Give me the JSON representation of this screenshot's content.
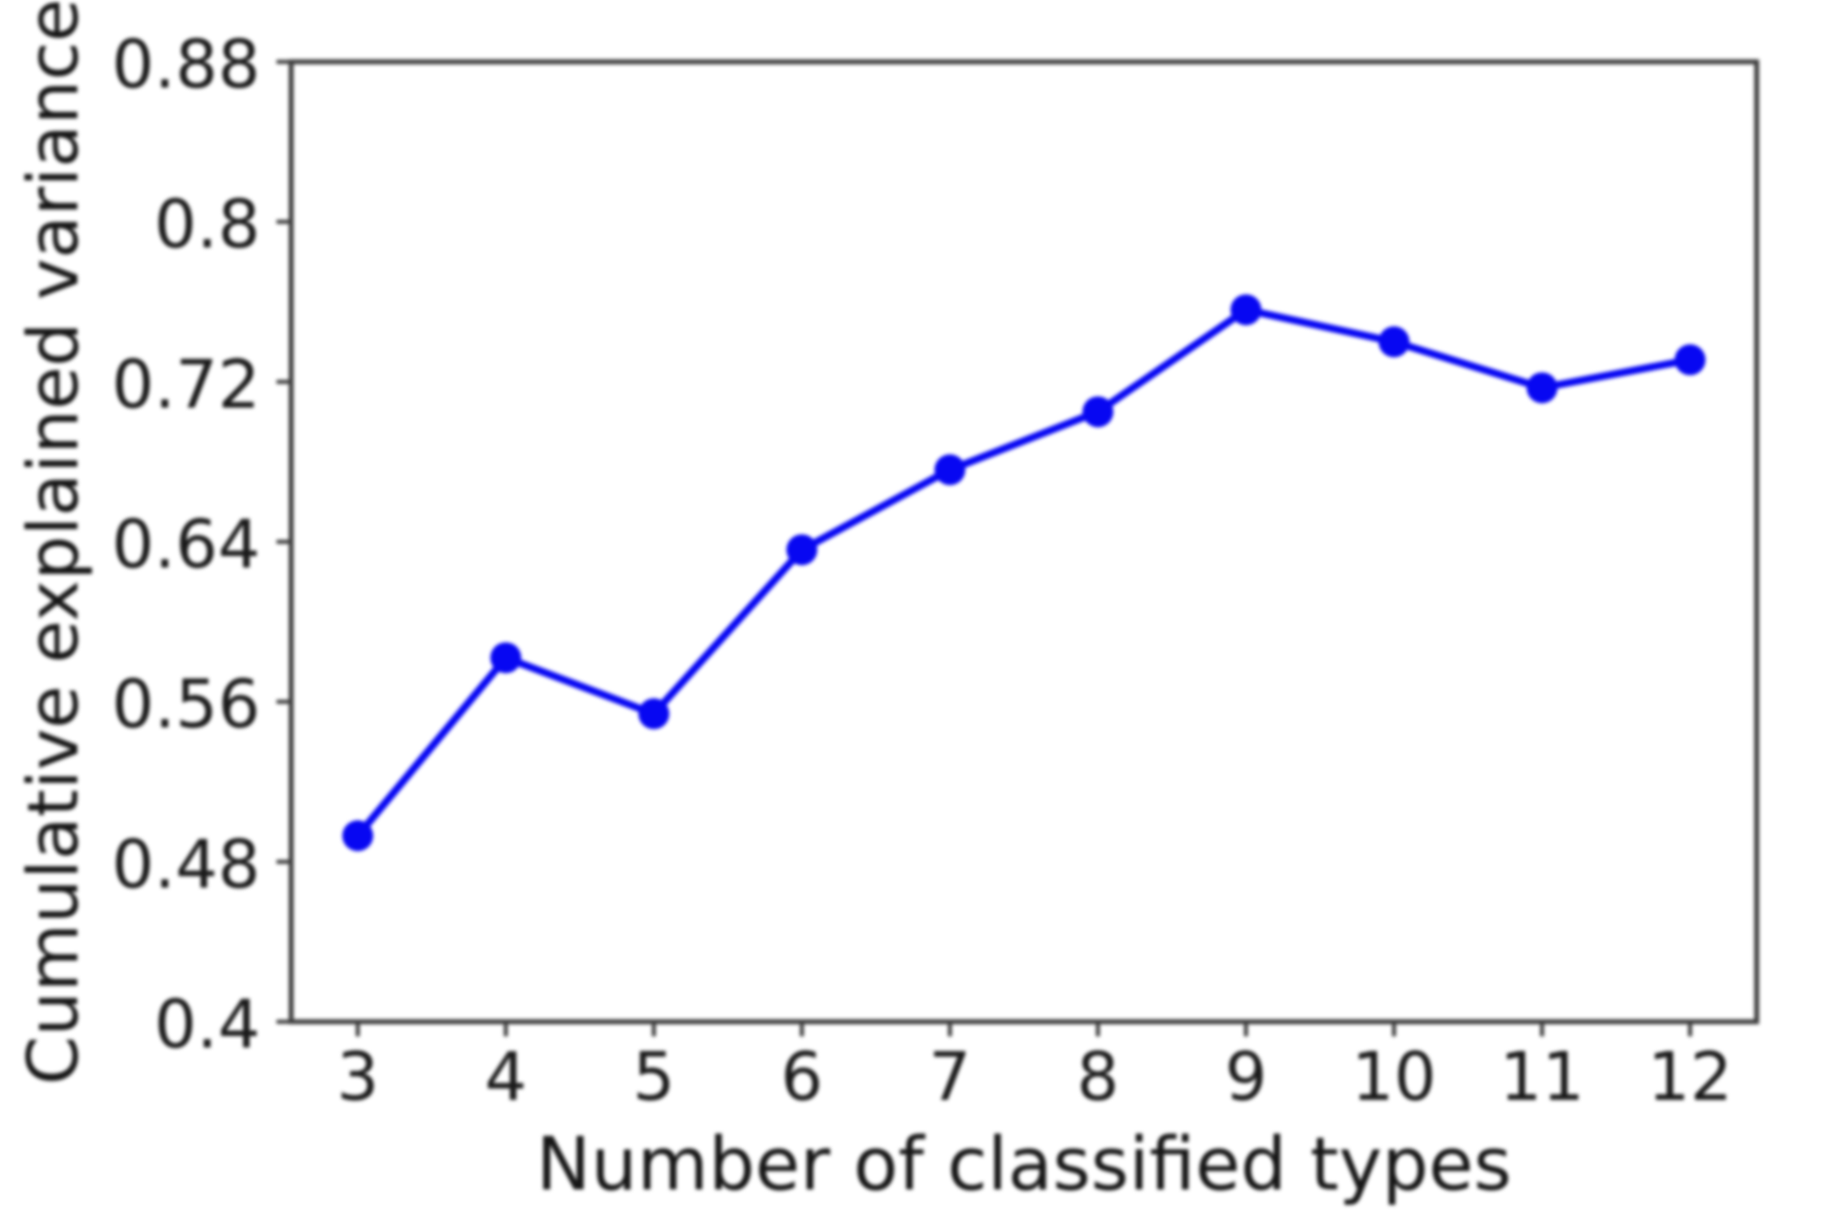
{
  "figure": {
    "background": "#ffffff",
    "line_color": "#0707f2",
    "marker_color": "#0707f2",
    "spine_color": "#3d3d3d",
    "tick_color": "#3d3d3d",
    "text_color": "#161616"
  },
  "chart_data": {
    "type": "line",
    "title": "",
    "xlabel": "Number of classified types",
    "ylabel": "Cumulative explained variance",
    "x": [
      3,
      4,
      5,
      6,
      7,
      8,
      9,
      10,
      11,
      12
    ],
    "values": [
      0.493,
      0.582,
      0.554,
      0.636,
      0.676,
      0.705,
      0.756,
      0.74,
      0.717,
      0.731
    ],
    "series": [
      {
        "name": "cumulative-explained-variance",
        "values": [
          0.493,
          0.582,
          0.554,
          0.636,
          0.676,
          0.705,
          0.756,
          0.74,
          0.717,
          0.731
        ]
      }
    ],
    "xlim": [
      2.55,
      12.45
    ],
    "ylim": [
      0.4,
      0.88
    ],
    "yticks": [
      0.88,
      0.8,
      0.72,
      0.64,
      0.56,
      0.48,
      0.4
    ],
    "ytick_labels": [
      "0.88",
      "0.8",
      "0.72",
      "0.64",
      "0.56",
      "0.48",
      "0.4"
    ],
    "xticks": [
      3,
      4,
      5,
      6,
      7,
      8,
      9,
      10,
      11,
      12
    ],
    "xtick_labels": [
      "3",
      "4",
      "5",
      "6",
      "7",
      "8",
      "9",
      "10",
      "11",
      "12"
    ],
    "grid": false,
    "legend_position": "none",
    "marker": "o",
    "line_style": "solid"
  }
}
